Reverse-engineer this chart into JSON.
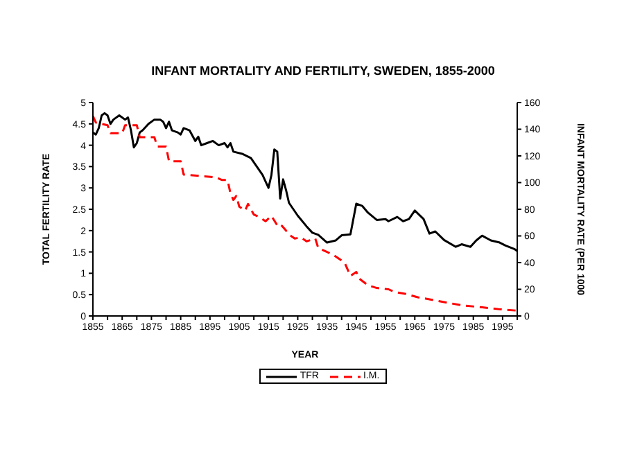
{
  "chart_data": {
    "type": "line",
    "title": "INFANT MORTALITY AND FERTILITY, SWEDEN, 1855-2000",
    "xlabel": "YEAR",
    "ylabel": "TOTAL FERTILITY RATE",
    "y2label": "INFANT MORTALITY RATE (PER 1000",
    "xlim": [
      1855,
      2000
    ],
    "xticks": [
      1855,
      {
        "value": 1860,
        "label": null
      },
      1865,
      {
        "value": 1870,
        "label": null
      },
      1875,
      {
        "value": 1880,
        "label": null
      },
      1885,
      {
        "value": 1890,
        "label": null
      },
      1895,
      {
        "value": 1900,
        "label": null
      },
      1905,
      {
        "value": 1910,
        "label": null
      },
      1915,
      {
        "value": 1920,
        "label": null
      },
      1925,
      {
        "value": 1930,
        "label": null
      },
      1935,
      {
        "value": 1940,
        "label": null
      },
      1945,
      {
        "value": 1950,
        "label": null
      },
      1955,
      {
        "value": 1960,
        "label": null
      },
      1965,
      {
        "value": 1970,
        "label": null
      },
      1975,
      {
        "value": 1980,
        "label": null
      },
      1985,
      {
        "value": 1990,
        "label": null
      },
      1995,
      {
        "value": 2000,
        "label": null
      }
    ],
    "ylim": [
      0,
      5
    ],
    "yticks": [
      0,
      0.5,
      1,
      1.5,
      2,
      2.5,
      3,
      3.5,
      4,
      4.5,
      5
    ],
    "y2lim": [
      0,
      160
    ],
    "y2ticks": [
      0,
      20,
      40,
      60,
      80,
      100,
      120,
      140,
      160
    ],
    "grid": false,
    "legend": "bottom",
    "marker": "none",
    "series": [
      {
        "name": "TFR",
        "color": "#000000",
        "line_style": "solid",
        "x": [
          1855,
          1856,
          1857,
          1858,
          1859,
          1860,
          1861,
          1862,
          1864,
          1866,
          1867,
          1868,
          1869,
          1870,
          1871,
          1872,
          1874,
          1876,
          1878,
          1879,
          1880,
          1881,
          1882,
          1884,
          1885,
          1886,
          1888,
          1890,
          1891,
          1892,
          1894,
          1896,
          1898,
          1900,
          1901,
          1902,
          1903,
          1906,
          1909,
          1911,
          1913,
          1915,
          1916,
          1917,
          1918,
          1919,
          1920,
          1921,
          1922,
          1925,
          1928,
          1930,
          1932,
          1935,
          1938,
          1940,
          1943,
          1945,
          1947,
          1949,
          1952,
          1955,
          1956,
          1959,
          1961,
          1963,
          1965,
          1968,
          1970,
          1972,
          1975,
          1979,
          1981,
          1984,
          1986,
          1988,
          1991,
          1994,
          1996,
          1999,
          2000
        ],
        "values": [
          4.3,
          4.25,
          4.4,
          4.7,
          4.75,
          4.7,
          4.5,
          4.6,
          4.7,
          4.6,
          4.65,
          4.35,
          3.95,
          4.05,
          4.3,
          4.35,
          4.5,
          4.6,
          4.6,
          4.55,
          4.4,
          4.55,
          4.35,
          4.3,
          4.25,
          4.4,
          4.35,
          4.1,
          4.2,
          4.0,
          4.05,
          4.1,
          4.0,
          4.05,
          3.95,
          4.05,
          3.85,
          3.8,
          3.7,
          3.5,
          3.3,
          3.0,
          3.3,
          3.9,
          3.85,
          2.75,
          3.2,
          2.95,
          2.65,
          2.35,
          2.1,
          1.95,
          1.9,
          1.72,
          1.77,
          1.89,
          1.91,
          2.63,
          2.58,
          2.42,
          2.25,
          2.27,
          2.22,
          2.32,
          2.22,
          2.27,
          2.47,
          2.27,
          1.93,
          1.98,
          1.78,
          1.62,
          1.68,
          1.62,
          1.77,
          1.88,
          1.77,
          1.72,
          1.65,
          1.57,
          1.52
        ]
      },
      {
        "name": "I.M.",
        "color": "#ff0000",
        "line_style": "dashed",
        "axis": "y2",
        "x": [
          1855,
          1856,
          1858,
          1860,
          1861,
          1865,
          1866,
          1870,
          1871,
          1876,
          1877,
          1880,
          1881,
          1885,
          1886,
          1897,
          1899,
          1901,
          1902,
          1903,
          1904,
          1905,
          1907,
          1908,
          1910,
          1912,
          1914,
          1916,
          1918,
          1919,
          1921,
          1922,
          1924,
          1926,
          1928,
          1931,
          1932,
          1935,
          1937,
          1941,
          1943,
          1945,
          1946,
          1949,
          1952,
          1956,
          1958,
          1962,
          1966,
          1970,
          1976,
          1981,
          1988,
          1994,
          2000
        ],
        "values": [
          150,
          145,
          144,
          143,
          137,
          137,
          143,
          143,
          134,
          134,
          127,
          127,
          116,
          116,
          106,
          104,
          102,
          102,
          92,
          87,
          90,
          82,
          79,
          84,
          76,
          74,
          71,
          75,
          68,
          69,
          64,
          61,
          58,
          59,
          56,
          58,
          51,
          48,
          46,
          40,
          30,
          33,
          28,
          23,
          21,
          20,
          18,
          16.5,
          14,
          12.5,
          10,
          8,
          6.5,
          5,
          4
        ]
      }
    ]
  }
}
